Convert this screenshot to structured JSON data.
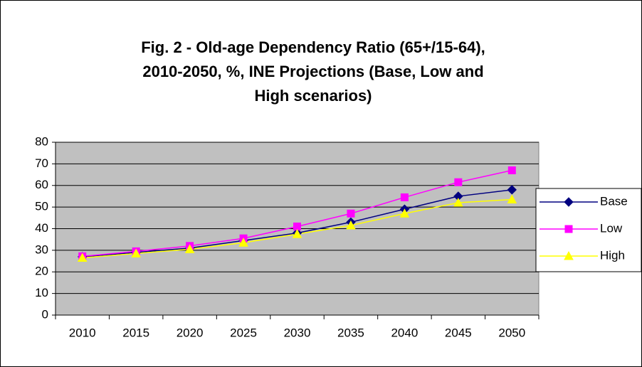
{
  "chart_data": {
    "type": "line",
    "title": [
      "Fig. 2 - Old-age Dependency Ratio (65+/15-64),",
      "2010-2050, %, INE Projections (Base, Low and",
      "High scenarios)"
    ],
    "categories": [
      "2010",
      "2015",
      "2020",
      "2025",
      "2030",
      "2035",
      "2040",
      "2045",
      "2050"
    ],
    "series": [
      {
        "name": "Base",
        "color": "#000080",
        "marker": "diamond",
        "values": [
          27,
          29,
          31,
          34.5,
          38,
          43,
          49,
          55,
          58
        ]
      },
      {
        "name": "Low",
        "color": "#ff00ff",
        "marker": "square",
        "values": [
          27.2,
          29.5,
          32,
          35.5,
          41,
          47,
          54.5,
          61.5,
          67
        ]
      },
      {
        "name": "High",
        "color": "#ffff00",
        "marker": "triangle",
        "values": [
          26.5,
          28.5,
          30.5,
          33.5,
          37.5,
          41.5,
          47,
          52,
          53.5
        ]
      }
    ],
    "ylim": [
      0,
      80
    ],
    "yticks": [
      0,
      10,
      20,
      30,
      40,
      50,
      60,
      70,
      80
    ],
    "grid": true,
    "legend": "right"
  }
}
